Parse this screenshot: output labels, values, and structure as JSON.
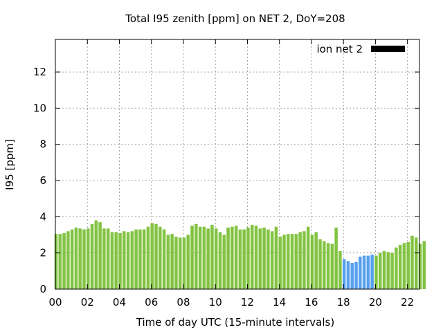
{
  "chart_data": {
    "type": "bar",
    "title": "Total I95 zenith [ppm] on NET 2, DoY=208",
    "xlabel": "Time of day UTC (15-minute intervals)",
    "ylabel": "I95 [ppm]",
    "xlim": [
      0,
      22.75
    ],
    "ylim": [
      0,
      13.8
    ],
    "xticks": [
      "00",
      "02",
      "04",
      "06",
      "08",
      "10",
      "12",
      "14",
      "16",
      "18",
      "20",
      "22"
    ],
    "yticks": [
      "0",
      "2",
      "4",
      "6",
      "8",
      "10",
      "12"
    ],
    "grid": true,
    "legend": {
      "label": "ion net 2",
      "position": "top-right",
      "color": "#000000"
    },
    "colors": {
      "normal": "#82c341",
      "highlight": "#56a0ee"
    },
    "highlight_range_hours": [
      18,
      20
    ],
    "bar_interval_hours": 0.25,
    "values": [
      3.05,
      3.05,
      3.1,
      3.2,
      3.3,
      3.4,
      3.35,
      3.3,
      3.35,
      3.6,
      3.8,
      3.7,
      3.35,
      3.35,
      3.15,
      3.15,
      3.1,
      3.2,
      3.15,
      3.2,
      3.3,
      3.3,
      3.3,
      3.45,
      3.65,
      3.6,
      3.45,
      3.3,
      3.0,
      3.05,
      2.9,
      2.85,
      2.85,
      3.0,
      3.5,
      3.6,
      3.45,
      3.45,
      3.35,
      3.55,
      3.35,
      3.15,
      3.0,
      3.4,
      3.45,
      3.5,
      3.3,
      3.3,
      3.4,
      3.55,
      3.5,
      3.35,
      3.4,
      3.3,
      3.2,
      3.45,
      2.9,
      3.0,
      3.05,
      3.05,
      3.05,
      3.15,
      3.2,
      3.45,
      3.0,
      3.15,
      2.75,
      2.65,
      2.55,
      2.5,
      3.4,
      2.1,
      1.65,
      1.55,
      1.45,
      1.5,
      1.8,
      1.85,
      1.85,
      1.9,
      1.85,
      2.0,
      2.1,
      2.05,
      2.0,
      2.3,
      2.45,
      2.55,
      2.6,
      2.95,
      2.85,
      2.5,
      2.65
    ]
  }
}
